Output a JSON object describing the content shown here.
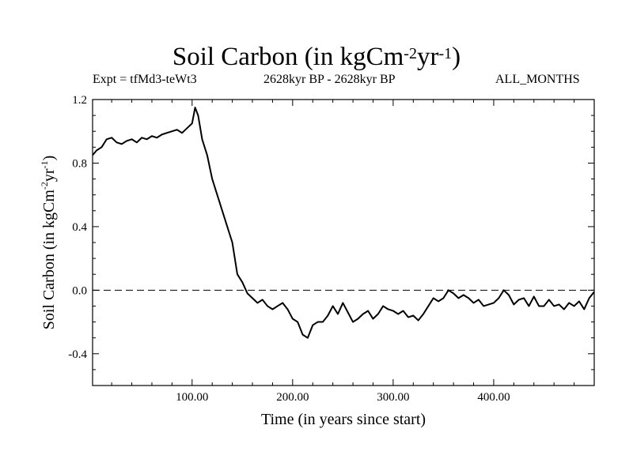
{
  "header": {
    "title_main": "Soil Carbon (in kgCm",
    "title_exp1": "-2",
    "title_mid": "yr",
    "title_exp2": "-1",
    "title_end": ")",
    "experiment": "Expt = tfMd3-teWt3",
    "period": "2628kyr BP - 2628kyr BP",
    "months": "ALL_MONTHS"
  },
  "chart_data": {
    "type": "line",
    "title": "Soil Carbon (in kgCm-2yr-1)",
    "xlabel": "Time (in years since start)",
    "ylabel_main": "Soil Carbon (in kgCm",
    "ylabel_exp1": "-2",
    "ylabel_mid": "yr",
    "ylabel_exp2": "-1",
    "ylabel_end": ")",
    "xlim": [
      1,
      500
    ],
    "ylim": [
      -0.6,
      1.2
    ],
    "x_ticks": [
      100,
      200,
      300,
      400
    ],
    "x_tick_labels": [
      "100.00",
      "200.00",
      "300.00",
      "400.00"
    ],
    "y_ticks": [
      -0.4,
      0.0,
      0.4,
      0.8,
      1.2
    ],
    "y_tick_labels": [
      "-0.4",
      "0.0",
      "0.4",
      "0.8",
      "1.2"
    ],
    "reference_line": {
      "y": 0.0,
      "style": "dashed"
    },
    "series": [
      {
        "name": "Soil Carbon",
        "x": [
          1,
          5,
          10,
          15,
          20,
          25,
          30,
          35,
          40,
          45,
          50,
          55,
          60,
          65,
          70,
          75,
          80,
          85,
          90,
          95,
          100,
          103,
          106,
          110,
          115,
          120,
          125,
          130,
          135,
          140,
          145,
          150,
          155,
          160,
          165,
          170,
          175,
          180,
          185,
          190,
          195,
          200,
          205,
          210,
          215,
          220,
          225,
          230,
          235,
          240,
          245,
          250,
          255,
          260,
          265,
          270,
          275,
          280,
          285,
          290,
          295,
          300,
          305,
          310,
          315,
          320,
          325,
          330,
          335,
          340,
          345,
          350,
          355,
          360,
          365,
          370,
          375,
          380,
          385,
          390,
          395,
          400,
          405,
          410,
          415,
          420,
          425,
          430,
          435,
          440,
          445,
          450,
          455,
          460,
          465,
          470,
          475,
          480,
          485,
          490,
          495,
          500
        ],
        "values": [
          0.85,
          0.88,
          0.9,
          0.95,
          0.96,
          0.93,
          0.92,
          0.94,
          0.95,
          0.93,
          0.96,
          0.95,
          0.97,
          0.96,
          0.98,
          0.99,
          1.0,
          1.01,
          0.99,
          1.02,
          1.05,
          1.15,
          1.1,
          0.95,
          0.85,
          0.7,
          0.6,
          0.5,
          0.4,
          0.3,
          0.1,
          0.05,
          -0.02,
          -0.05,
          -0.08,
          -0.06,
          -0.1,
          -0.12,
          -0.1,
          -0.08,
          -0.12,
          -0.18,
          -0.2,
          -0.28,
          -0.3,
          -0.22,
          -0.2,
          -0.2,
          -0.16,
          -0.1,
          -0.15,
          -0.08,
          -0.14,
          -0.2,
          -0.18,
          -0.15,
          -0.13,
          -0.18,
          -0.15,
          -0.1,
          -0.12,
          -0.13,
          -0.15,
          -0.13,
          -0.17,
          -0.16,
          -0.19,
          -0.15,
          -0.1,
          -0.05,
          -0.07,
          -0.05,
          0.0,
          -0.02,
          -0.05,
          -0.03,
          -0.05,
          -0.08,
          -0.06,
          -0.1,
          -0.09,
          -0.08,
          -0.05,
          0.0,
          -0.03,
          -0.09,
          -0.06,
          -0.05,
          -0.1,
          -0.04,
          -0.1,
          -0.1,
          -0.06,
          -0.1,
          -0.09,
          -0.12,
          -0.08,
          -0.1,
          -0.07,
          -0.12,
          -0.05,
          -0.01
        ]
      }
    ]
  }
}
